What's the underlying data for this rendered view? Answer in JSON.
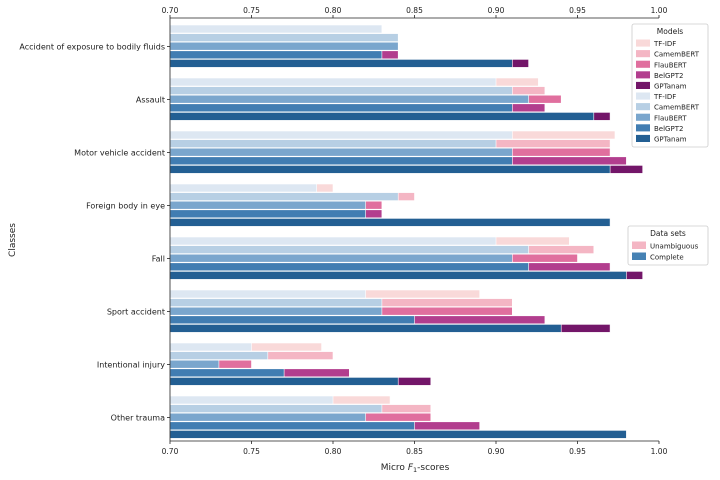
{
  "chart_data": {
    "type": "bar",
    "orientation": "horizontal",
    "xlabel": "Micro F1-scores",
    "ylabel": "Classes",
    "xlim": [
      0.7,
      1.0
    ],
    "xticks": [
      "0.70",
      "0.75",
      "0.80",
      "0.85",
      "0.90",
      "0.95",
      "1.00"
    ],
    "categories": [
      "Accident of exposure to bodily fluids",
      "Assault",
      "Motor vehicle accident",
      "Foreign body in eye",
      "Fall",
      "Sport accident",
      "Intentional injury",
      "Other trauma"
    ],
    "models": [
      "TF-IDF",
      "CamemBERT",
      "FlauBERT",
      "BelGPT2",
      "GPTanam"
    ],
    "series": [
      {
        "name": "Unambiguous",
        "dataset": "Unambiguous",
        "model": "TF-IDF",
        "color": "#f9d9d9",
        "values": [
          0.8,
          0.926,
          0.973,
          0.8,
          0.945,
          0.89,
          0.793,
          0.835
        ]
      },
      {
        "name": "Unambiguous",
        "dataset": "Unambiguous",
        "model": "CamemBERT",
        "color": "#f4b6c4",
        "values": [
          0.84,
          0.93,
          0.97,
          0.85,
          0.96,
          0.91,
          0.8,
          0.86
        ]
      },
      {
        "name": "Unambiguous",
        "dataset": "Unambiguous",
        "model": "FlauBERT",
        "color": "#e06f9e",
        "values": [
          0.84,
          0.94,
          0.97,
          0.83,
          0.95,
          0.91,
          0.75,
          0.86
        ]
      },
      {
        "name": "Unambiguous",
        "dataset": "Unambiguous",
        "model": "BelGPT2",
        "color": "#b23e8e",
        "values": [
          0.84,
          0.93,
          0.98,
          0.83,
          0.97,
          0.93,
          0.81,
          0.89
        ]
      },
      {
        "name": "Unambiguous",
        "dataset": "Unambiguous",
        "model": "GPTanam",
        "color": "#731669",
        "values": [
          0.92,
          0.97,
          0.99,
          0.97,
          0.99,
          0.97,
          0.86,
          0.98
        ]
      },
      {
        "name": "Complete",
        "dataset": "Complete",
        "model": "TF-IDF",
        "color": "#dde7f2",
        "values": [
          0.83,
          0.9,
          0.91,
          0.79,
          0.9,
          0.82,
          0.75,
          0.8
        ]
      },
      {
        "name": "Complete",
        "dataset": "Complete",
        "model": "CamemBERT",
        "color": "#b7cfe4",
        "values": [
          0.84,
          0.91,
          0.9,
          0.84,
          0.92,
          0.83,
          0.76,
          0.83
        ]
      },
      {
        "name": "Complete",
        "dataset": "Complete",
        "model": "FlauBERT",
        "color": "#7aa6cd",
        "values": [
          0.84,
          0.92,
          0.91,
          0.82,
          0.91,
          0.83,
          0.73,
          0.82
        ]
      },
      {
        "name": "Complete",
        "dataset": "Complete",
        "model": "BelGPT2",
        "color": "#417db2",
        "values": [
          0.83,
          0.91,
          0.91,
          0.82,
          0.92,
          0.85,
          0.77,
          0.85
        ]
      },
      {
        "name": "Complete",
        "dataset": "Complete",
        "model": "GPTanam",
        "color": "#235f93",
        "values": [
          0.91,
          0.96,
          0.97,
          0.97,
          0.98,
          0.94,
          0.84,
          0.98
        ]
      }
    ],
    "legends": [
      {
        "title": "Models",
        "placement": "top-right",
        "entries": [
          {
            "label": "TF-IDF",
            "color": "#f9d9d9"
          },
          {
            "label": "CamemBERT",
            "color": "#f4b6c4"
          },
          {
            "label": "FlauBERT",
            "color": "#e06f9e"
          },
          {
            "label": "BelGPT2",
            "color": "#b23e8e"
          },
          {
            "label": "GPTanam",
            "color": "#731669"
          },
          {
            "label": "TF-IDF",
            "color": "#dde7f2"
          },
          {
            "label": "CamemBERT",
            "color": "#b7cfe4"
          },
          {
            "label": "FlauBERT",
            "color": "#7aa6cd"
          },
          {
            "label": "BelGPT2",
            "color": "#417db2"
          },
          {
            "label": "GPTanam",
            "color": "#235f93"
          }
        ]
      },
      {
        "title": "Data sets",
        "placement": "right",
        "entries": [
          {
            "label": "Unambiguous",
            "color": "#f4b6c4"
          },
          {
            "label": "Complete",
            "color": "#4682b4"
          }
        ]
      }
    ]
  }
}
